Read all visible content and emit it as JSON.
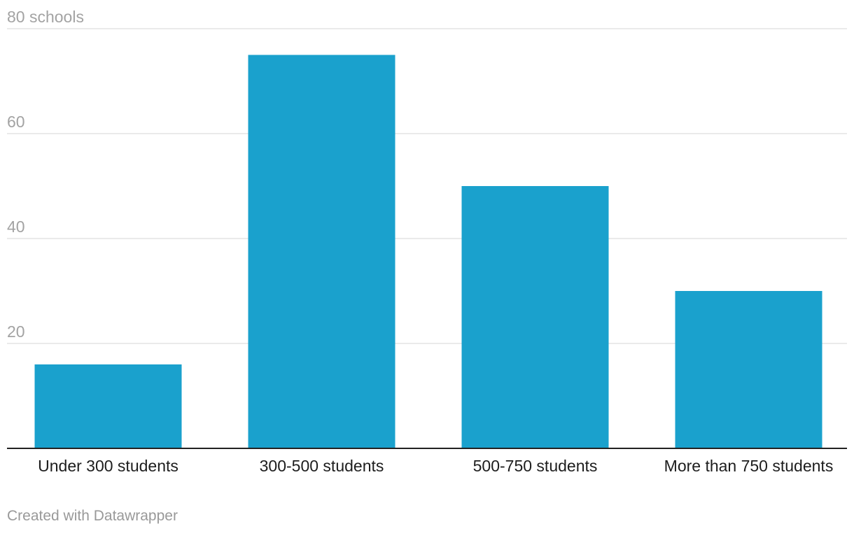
{
  "chart_data": {
    "type": "bar",
    "categories": [
      "Under 300 students",
      "300-500 students",
      "500-750 students",
      "More than 750 students"
    ],
    "values": [
      16,
      75,
      50,
      30
    ],
    "y_ticks": [
      {
        "value": 20,
        "label": "20"
      },
      {
        "value": 40,
        "label": "40"
      },
      {
        "value": 60,
        "label": "60"
      },
      {
        "value": 80,
        "label": "80 schools"
      }
    ],
    "ylim": [
      0,
      80
    ],
    "grid": true,
    "bar_color": "#1aa1cd",
    "grid_color": "#e4e4e4",
    "baseline_color": "#222222"
  },
  "footer": {
    "credit": "Created with Datawrapper"
  }
}
